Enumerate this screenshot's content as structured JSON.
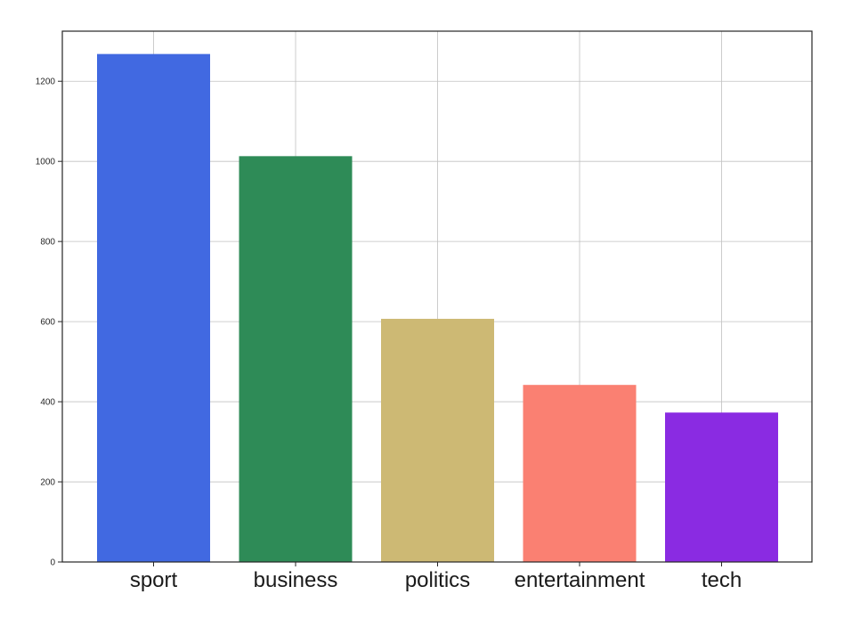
{
  "chart_data": {
    "type": "bar",
    "title": "",
    "xlabel": "",
    "ylabel": "",
    "categories": [
      "sport",
      "business",
      "politics",
      "entertainment",
      "tech"
    ],
    "values": [
      1268,
      1013,
      607,
      442,
      373
    ],
    "colors": [
      "#4169e1",
      "#2e8b57",
      "#cdb974",
      "#fa8072",
      "#8a2be2"
    ],
    "ylim": [
      0,
      1325
    ],
    "yticks": [
      0,
      200,
      400,
      600,
      800,
      1000,
      1200
    ],
    "ytick_labels": [
      "0",
      "200",
      "400",
      "600",
      "800",
      "1000",
      "1200"
    ],
    "grid": true,
    "legend": "none"
  }
}
